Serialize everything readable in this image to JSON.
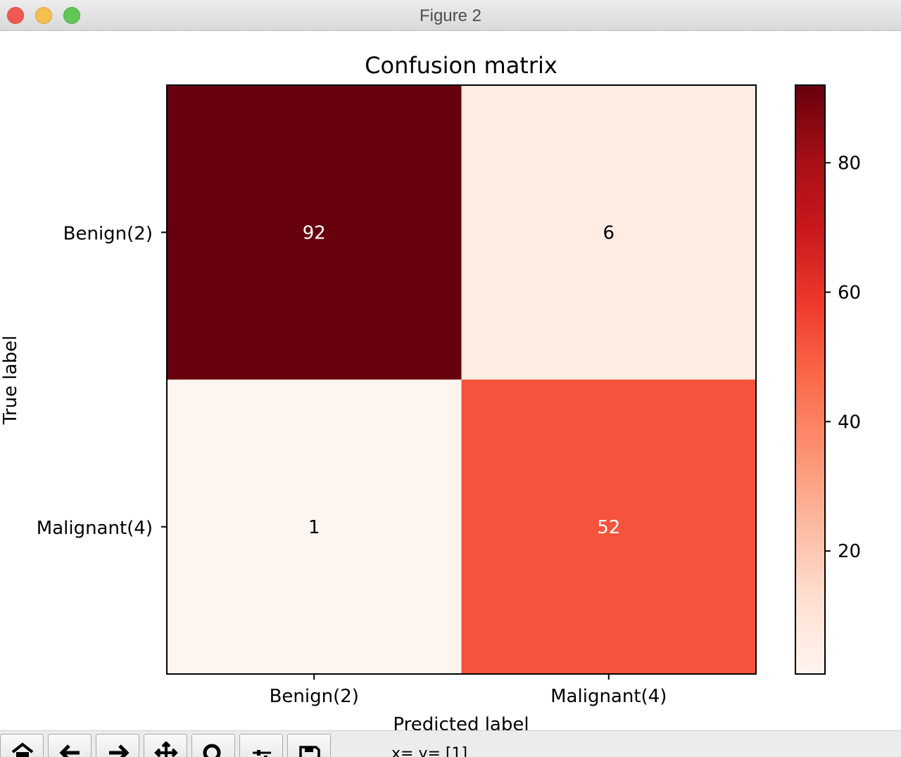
{
  "window": {
    "title": "Figure 2"
  },
  "toolbar": {
    "buttons": [
      {
        "icon": "home-icon"
      },
      {
        "icon": "back-arrow-icon"
      },
      {
        "icon": "forward-arrow-icon"
      },
      {
        "icon": "pan-icon"
      },
      {
        "icon": "zoom-icon"
      },
      {
        "icon": "configure-subplots-icon"
      },
      {
        "icon": "save-icon"
      }
    ],
    "coords_text": "x= y= [1]"
  },
  "chart_data": {
    "type": "heatmap",
    "title": "Confusion matrix",
    "xlabel": "Predicted label",
    "ylabel": "True label",
    "x_categories": [
      "Benign(2)",
      "Malignant(4)"
    ],
    "y_categories": [
      "Benign(2)",
      "Malignant(4)"
    ],
    "values": [
      [
        92,
        6
      ],
      [
        1,
        52
      ]
    ],
    "colormap": "Reds",
    "colorbar": {
      "range": [
        1,
        92
      ],
      "ticks": [
        20,
        40,
        60,
        80
      ]
    },
    "grid": false
  }
}
